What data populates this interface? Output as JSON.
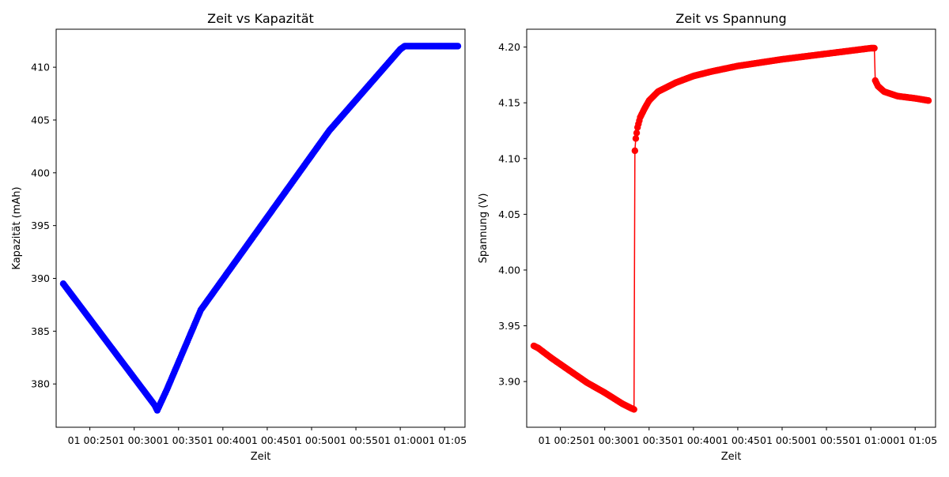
{
  "chart_data": [
    {
      "type": "line",
      "title": "Zeit vs Kapazität",
      "xlabel": "Zeit",
      "ylabel": "Kapazität (mA​h)",
      "x_ticks": [
        "01 00:25",
        "01 00:30",
        "01 00:35",
        "01 00:40",
        "01 00:45",
        "01 00:50",
        "01 00:55",
        "01 01:00",
        "01 01:05"
      ],
      "x_tick_minutes": [
        25,
        30,
        35,
        40,
        45,
        50,
        55,
        60,
        65
      ],
      "y_ticks": [
        380,
        385,
        390,
        395,
        400,
        405,
        410
      ],
      "xlim_minutes": [
        21.2,
        67.3
      ],
      "ylim": [
        375.9,
        413.6
      ],
      "marker": "o",
      "color": "#0000ff",
      "grid": false,
      "series": [
        {
          "x_minutes": [
            22.0,
            32.3,
            32.6,
            33.7,
            37.5,
            52.0,
            60.0,
            60.5,
            66.5
          ],
          "values": [
            389.5,
            378.0,
            377.5,
            379.5,
            387.0,
            404.0,
            411.7,
            412.0,
            412.0
          ]
        }
      ]
    },
    {
      "type": "line",
      "title": "Zeit vs Spannung",
      "xlabel": "Zeit",
      "ylabel": "Spannung (V)",
      "x_ticks": [
        "01 00:25",
        "01 00:30",
        "01 00:35",
        "01 00:40",
        "01 00:45",
        "01 00:50",
        "01 00:55",
        "01 01:00",
        "01 01:05"
      ],
      "x_tick_minutes": [
        25,
        30,
        35,
        40,
        45,
        50,
        55,
        60,
        65
      ],
      "y_ticks": [
        "3.90",
        "3.95",
        "4.00",
        "4.05",
        "4.10",
        "4.15",
        "4.20"
      ],
      "xlim_minutes": [
        21.2,
        67.3
      ],
      "ylim": [
        3.859,
        4.216
      ],
      "marker": "o",
      "color": "#ff0000",
      "grid": false,
      "series": [
        {
          "x_minutes": [
            22.0,
            22.5,
            23.0,
            24.0,
            26.0,
            28.0,
            30.0,
            32.0,
            33.0,
            33.3,
            33.4,
            33.5,
            33.7,
            34.0,
            34.5,
            35.0,
            36.0,
            38.0,
            40.0,
            42.0,
            45.0,
            50.0,
            55.0,
            60.0,
            60.4,
            60.5,
            60.8,
            61.5,
            63.0,
            65.0,
            66.5
          ],
          "values": [
            3.932,
            3.93,
            3.927,
            3.921,
            3.91,
            3.899,
            3.89,
            3.88,
            3.876,
            3.875,
            4.107,
            4.118,
            4.128,
            4.137,
            4.145,
            4.152,
            4.16,
            4.168,
            4.174,
            4.178,
            4.183,
            4.189,
            4.194,
            4.199,
            4.199,
            4.17,
            4.165,
            4.16,
            4.156,
            4.154,
            4.152
          ]
        }
      ]
    }
  ]
}
